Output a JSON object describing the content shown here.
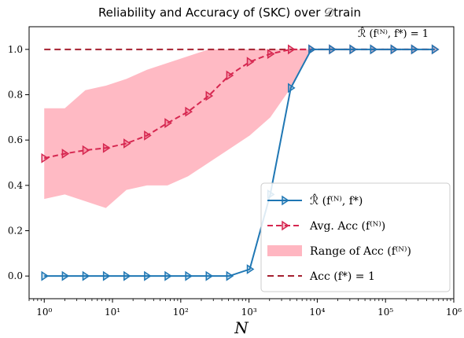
{
  "chart_data": {
    "type": "line",
    "title": "Reliability and Accuracy of (SKC) over 𝒟train",
    "xlabel": "N",
    "ylabel": "",
    "xscale": "log",
    "xlim": [
      0.6,
      1000000
    ],
    "ylim": [
      -0.1,
      1.1
    ],
    "xticks": [
      {
        "value": 1,
        "label": "10⁰"
      },
      {
        "value": 10,
        "label": "10¹"
      },
      {
        "value": 100,
        "label": "10²"
      },
      {
        "value": 1000,
        "label": "10³"
      },
      {
        "value": 10000,
        "label": "10⁴"
      },
      {
        "value": 100000,
        "label": "10⁵"
      },
      {
        "value": 1000000,
        "label": "10⁶"
      }
    ],
    "yticks": [
      {
        "value": 0.0,
        "label": "0.0"
      },
      {
        "value": 0.2,
        "label": "0.2"
      },
      {
        "value": 0.4,
        "label": "0.4"
      },
      {
        "value": 0.6,
        "label": "0.6"
      },
      {
        "value": 0.8,
        "label": "0.8"
      },
      {
        "value": 1.0,
        "label": "1.0"
      }
    ],
    "x": [
      1,
      2,
      4,
      8,
      16,
      32,
      64,
      128,
      256,
      512,
      1024,
      2048,
      4096,
      8192,
      16384,
      32768,
      65536,
      131072,
      262144,
      524288
    ],
    "series": [
      {
        "name": "ℛ̂ (f⁽ᴺ⁾, f*)",
        "kind": "line",
        "color": "#1f77b4",
        "marker": "triangle-right",
        "values": [
          0,
          0,
          0,
          0,
          0,
          0,
          0,
          0,
          0,
          0,
          0.03,
          0.36,
          0.83,
          1,
          1,
          1,
          1,
          1,
          1,
          1
        ]
      },
      {
        "name": "Avg. Acc (f⁽ᴺ⁾)",
        "kind": "dashed-line",
        "color": "#d62750",
        "marker": "triangle-right",
        "values": [
          0.52,
          0.54,
          0.555,
          0.565,
          0.585,
          0.62,
          0.675,
          0.725,
          0.795,
          0.885,
          0.945,
          0.98,
          1,
          1,
          1,
          1,
          1,
          1,
          1,
          1
        ]
      },
      {
        "name": "Range of Acc (f⁽ᴺ⁾)",
        "kind": "band",
        "color": "#ffb6c1",
        "lower": [
          0.34,
          0.36,
          0.33,
          0.3,
          0.38,
          0.4,
          0.4,
          0.44,
          0.5,
          0.56,
          0.62,
          0.7,
          0.83,
          1,
          1,
          1,
          1,
          1,
          1,
          1
        ],
        "upper": [
          0.74,
          0.74,
          0.82,
          0.84,
          0.87,
          0.91,
          0.94,
          0.97,
          1.0,
          1.0,
          1.0,
          1.0,
          1.0,
          1.0,
          1.0,
          1.0,
          1.0,
          1.0,
          1.0,
          1.0
        ]
      },
      {
        "name": "Acc (f*) = 1",
        "kind": "hline",
        "color": "#a52030",
        "value": 1.0
      }
    ],
    "annotation": "ℛ̂ (f⁽ᴺ⁾, f*) = 1",
    "legend_placement": "lower-right",
    "grid": false
  }
}
